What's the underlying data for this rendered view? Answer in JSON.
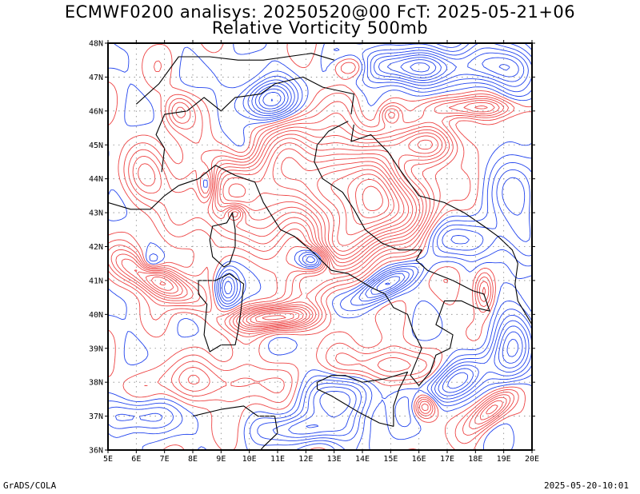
{
  "title": {
    "line1": "ECMWF0200 analisys: 20250520@00 FcT: 2025-05-21+06",
    "line2": "Relative Vorticity 500mb"
  },
  "footer": {
    "left": "GrADS/COLA",
    "right": "2025-05-20-10:01"
  },
  "axes": {
    "lat_ticks": [
      "48N",
      "47N",
      "46N",
      "45N",
      "44N",
      "43N",
      "42N",
      "41N",
      "40N",
      "39N",
      "38N",
      "37N",
      "36N"
    ],
    "lon_ticks": [
      "5E",
      "6E",
      "7E",
      "8E",
      "9E",
      "10E",
      "11E",
      "12E",
      "13E",
      "14E",
      "15E",
      "16E",
      "17E",
      "18E",
      "19E",
      "20E"
    ],
    "lat_range": [
      36,
      48
    ],
    "lon_range": [
      5,
      20
    ]
  },
  "colors": {
    "positive_contour": "#ee4444",
    "negative_contour": "#2244ee",
    "coastline": "#000000",
    "grid": "#888888"
  }
}
